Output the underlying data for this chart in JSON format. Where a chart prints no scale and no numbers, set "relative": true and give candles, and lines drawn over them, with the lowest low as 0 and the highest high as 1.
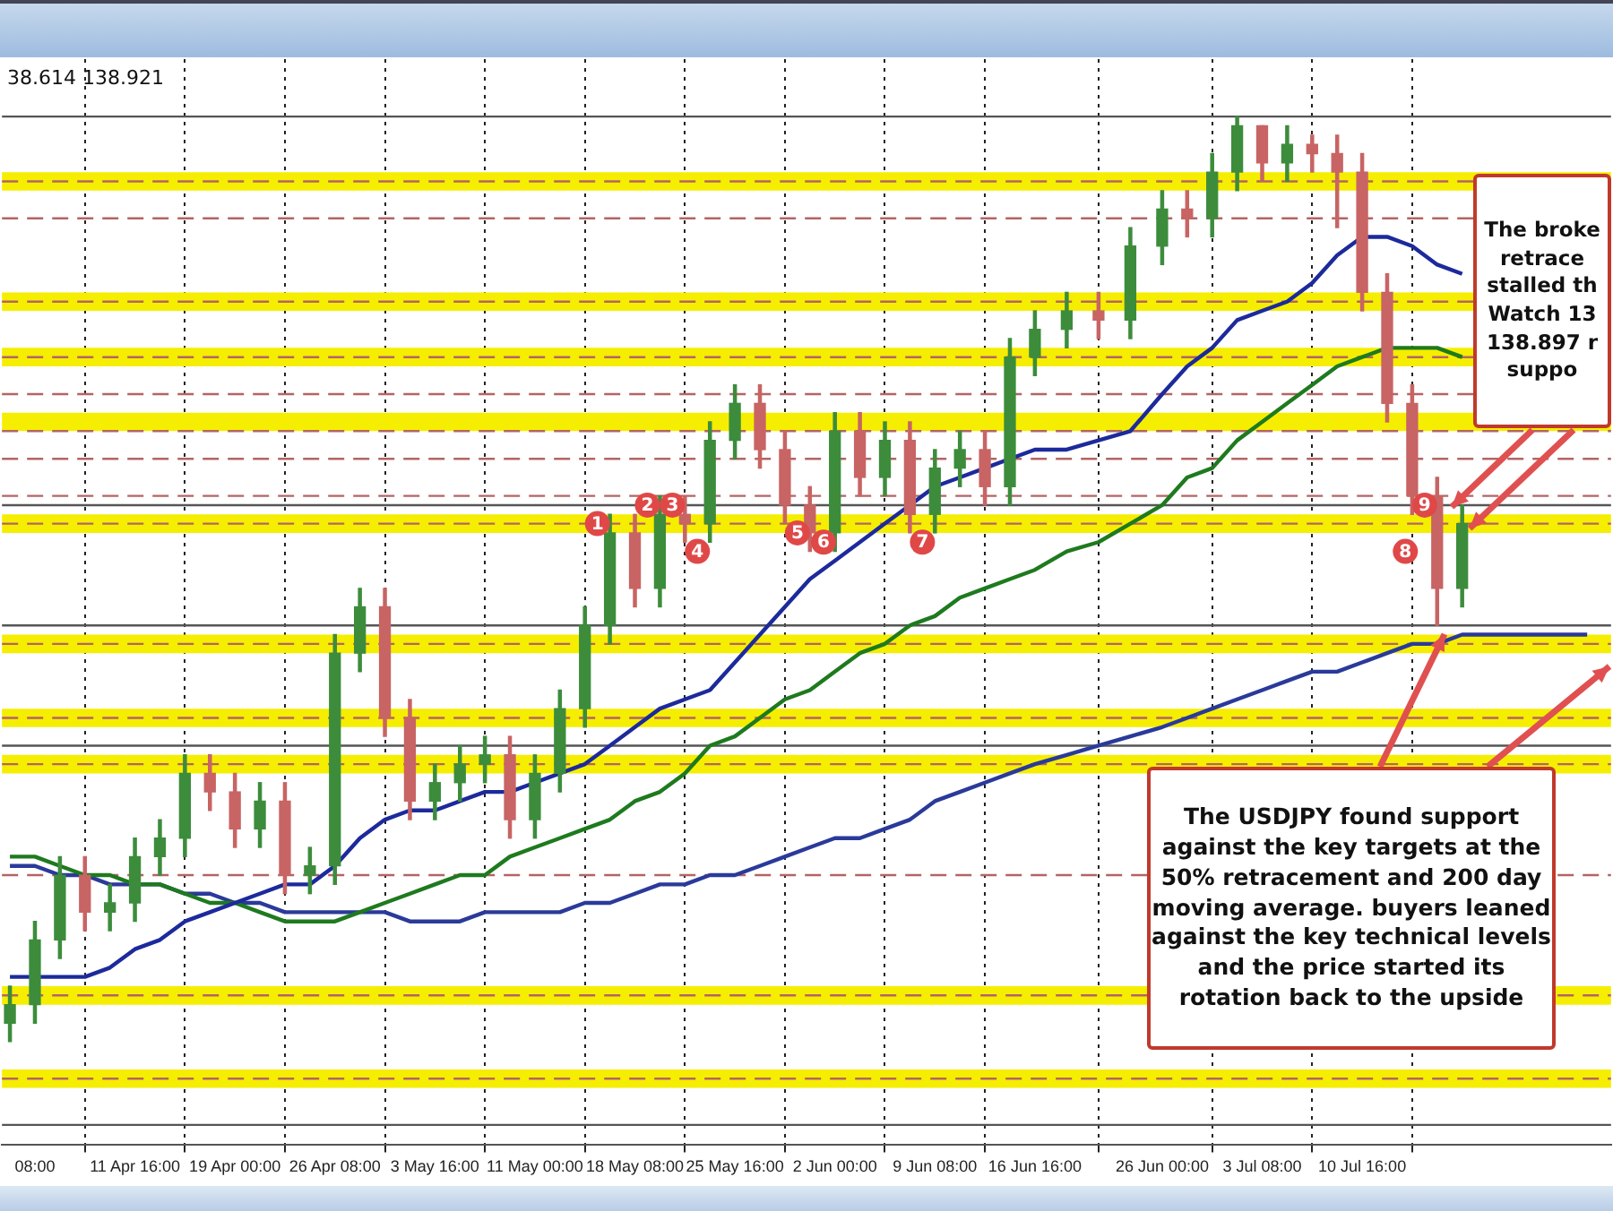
{
  "chart_data": {
    "type": "candlestick",
    "relative": true,
    "grid": "x",
    "tick_labels": "x",
    "x": [
      "--04-02T12:00",
      "--04-04T08:00",
      "--04-06T04:00",
      "--04-08T00:00",
      "--04-09T20:00",
      "--04-11T16:00",
      "--04-13T12:00",
      "--04-15T08:00",
      "--04-17T04:00",
      "--04-19T00:00",
      "--04-20T20:00",
      "--04-22T16:00",
      "--04-24T12:00",
      "--04-26T08:00",
      "--04-28T04:00",
      "--04-30T00:00",
      "--05-01T20:00",
      "--05-03T16:00",
      "--05-05T12:00",
      "--05-07T08:00",
      "--05-09T04:00",
      "--05-11T00:00",
      "--05-12T20:00",
      "--05-14T16:00",
      "--05-16T12:00",
      "--05-18T08:00",
      "--05-20T04:00",
      "--05-22T00:00",
      "--05-23T20:00",
      "--05-25T16:00",
      "--05-27T12:00",
      "--05-29T08:00",
      "--05-31T04:00",
      "--06-02T00:00",
      "--06-03T20:00",
      "--06-05T16:00",
      "--06-07T12:00",
      "--06-09T08:00",
      "--06-11T04:00",
      "--06-13T00:00",
      "--06-14T20:00",
      "--06-16T16:00",
      "--06-19T00:00",
      "--06-21T08:00",
      "--06-23T16:00",
      "--06-26T00:00",
      "--06-27T20:00",
      "--06-29T16:00",
      "--07-01T12:00",
      "--07-03T08:00",
      "--07-05T04:00",
      "--07-07T00:00",
      "--07-08T20:00",
      "--07-10T16:00",
      "--07-12T12:00",
      "--07-14T08:00",
      "--07-16T04:00",
      "--07-18T00:00"
    ],
    "ohlc": [
      [
        0.02,
        0.06,
        0.0,
        0.04
      ],
      [
        0.04,
        0.13,
        0.02,
        0.11
      ],
      [
        0.11,
        0.2,
        0.09,
        0.18
      ],
      [
        0.18,
        0.2,
        0.12,
        0.14
      ],
      [
        0.14,
        0.17,
        0.12,
        0.15
      ],
      [
        0.15,
        0.22,
        0.13,
        0.2
      ],
      [
        0.2,
        0.24,
        0.18,
        0.22
      ],
      [
        0.22,
        0.31,
        0.2,
        0.29
      ],
      [
        0.29,
        0.31,
        0.25,
        0.27
      ],
      [
        0.27,
        0.29,
        0.21,
        0.23
      ],
      [
        0.23,
        0.28,
        0.21,
        0.26
      ],
      [
        0.26,
        0.28,
        0.16,
        0.18
      ],
      [
        0.18,
        0.21,
        0.16,
        0.19
      ],
      [
        0.19,
        0.44,
        0.17,
        0.42
      ],
      [
        0.42,
        0.49,
        0.4,
        0.47
      ],
      [
        0.47,
        0.49,
        0.33,
        0.35
      ],
      [
        0.35,
        0.37,
        0.24,
        0.26
      ],
      [
        0.26,
        0.3,
        0.24,
        0.28
      ],
      [
        0.28,
        0.32,
        0.26,
        0.3
      ],
      [
        0.3,
        0.33,
        0.28,
        0.31
      ],
      [
        0.31,
        0.33,
        0.22,
        0.24
      ],
      [
        0.24,
        0.31,
        0.22,
        0.29
      ],
      [
        0.29,
        0.38,
        0.27,
        0.36
      ],
      [
        0.36,
        0.47,
        0.34,
        0.45
      ],
      [
        0.45,
        0.57,
        0.43,
        0.55
      ],
      [
        0.55,
        0.57,
        0.47,
        0.49
      ],
      [
        0.49,
        0.59,
        0.47,
        0.57
      ],
      [
        0.57,
        0.59,
        0.54,
        0.56
      ],
      [
        0.56,
        0.67,
        0.54,
        0.65
      ],
      [
        0.65,
        0.71,
        0.63,
        0.69
      ],
      [
        0.69,
        0.71,
        0.62,
        0.64
      ],
      [
        0.64,
        0.66,
        0.56,
        0.58
      ],
      [
        0.58,
        0.6,
        0.53,
        0.55
      ],
      [
        0.55,
        0.68,
        0.53,
        0.66
      ],
      [
        0.66,
        0.68,
        0.59,
        0.61
      ],
      [
        0.61,
        0.67,
        0.59,
        0.65
      ],
      [
        0.65,
        0.67,
        0.55,
        0.57
      ],
      [
        0.57,
        0.64,
        0.55,
        0.62
      ],
      [
        0.62,
        0.66,
        0.6,
        0.64
      ],
      [
        0.64,
        0.66,
        0.58,
        0.6
      ],
      [
        0.6,
        0.76,
        0.58,
        0.74
      ],
      [
        0.74,
        0.79,
        0.72,
        0.77
      ],
      [
        0.77,
        0.81,
        0.75,
        0.79
      ],
      [
        0.79,
        0.81,
        0.76,
        0.78
      ],
      [
        0.78,
        0.88,
        0.76,
        0.86
      ],
      [
        0.86,
        0.92,
        0.84,
        0.9
      ],
      [
        0.9,
        0.92,
        0.87,
        0.89
      ],
      [
        0.89,
        0.96,
        0.87,
        0.94
      ],
      [
        0.94,
        1.0,
        0.92,
        0.99
      ],
      [
        0.99,
        0.99,
        0.93,
        0.95
      ],
      [
        0.95,
        0.99,
        0.93,
        0.97
      ],
      [
        0.97,
        0.98,
        0.94,
        0.96
      ],
      [
        0.96,
        0.98,
        0.88,
        0.94
      ],
      [
        0.94,
        0.96,
        0.79,
        0.81
      ],
      [
        0.81,
        0.83,
        0.67,
        0.69
      ],
      [
        0.69,
        0.71,
        0.57,
        0.59
      ],
      [
        0.59,
        0.61,
        0.45,
        0.49
      ],
      [
        0.49,
        0.58,
        0.47,
        0.56
      ]
    ],
    "colors": [
      "#3c8c3c",
      "#3c8c3c",
      "#3c8c3c",
      "#c86464",
      "#3c8c3c",
      "#3c8c3c",
      "#3c8c3c",
      "#3c8c3c",
      "#c86464",
      "#c86464",
      "#3c8c3c",
      "#c86464",
      "#3c8c3c",
      "#3c8c3c",
      "#3c8c3c",
      "#c86464",
      "#c86464",
      "#3c8c3c",
      "#3c8c3c",
      "#3c8c3c",
      "#c86464",
      "#3c8c3c",
      "#3c8c3c",
      "#3c8c3c",
      "#3c8c3c",
      "#c86464",
      "#3c8c3c",
      "#c86464",
      "#3c8c3c",
      "#3c8c3c",
      "#c86464",
      "#c86464",
      "#c86464",
      "#3c8c3c",
      "#c86464",
      "#3c8c3c",
      "#c86464",
      "#3c8c3c",
      "#3c8c3c",
      "#c86464",
      "#3c8c3c",
      "#3c8c3c",
      "#3c8c3c",
      "#c86464",
      "#3c8c3c",
      "#3c8c3c",
      "#c86464",
      "#3c8c3c",
      "#3c8c3c",
      "#c86464",
      "#3c8c3c",
      "#c86464",
      "#c86464",
      "#c86464",
      "#c86464",
      "#c86464",
      "#c86464",
      "#3c8c3c"
    ],
    "xlim": [
      "--04-01T22:00",
      "--07-28T22:00"
    ],
    "xticks": [
      {
        "value": "--04-04T08:00",
        "label": "08:00"
      },
      {
        "value": "--04-11T16:00",
        "label": "11 Apr 16:00"
      },
      {
        "value": "--04-19T00:00",
        "label": "19 Apr 00:00"
      },
      {
        "value": "--04-26T08:00",
        "label": "26 Apr 08:00"
      },
      {
        "value": "--05-03T16:00",
        "label": "3 May 16:00"
      },
      {
        "value": "--05-11T00:00",
        "label": "11 May 00:00"
      },
      {
        "value": "--05-18T08:00",
        "label": "18 May 08:00"
      },
      {
        "value": "--05-25T16:00",
        "label": "25 May 16:00"
      },
      {
        "value": "--06-02T00:00",
        "label": "2 Jun 00:00"
      },
      {
        "value": "--06-09T08:00",
        "label": "9 Jun 08:00"
      },
      {
        "value": "--06-16T16:00",
        "label": "16 Jun 16:00"
      },
      {
        "value": "--06-26T00:00",
        "label": "26 Jun 00:00"
      },
      {
        "value": "--07-03T08:00",
        "label": "3 Jul 08:00"
      },
      {
        "value": "--07-10T16:00",
        "label": "10 Jul 16:00"
      }
    ],
    "series": [
      {
        "type": "line",
        "color": "#1c2a9c",
        "values": [
          0.07,
          0.07,
          0.07,
          0.07,
          0.08,
          0.1,
          0.11,
          0.13,
          0.14,
          0.15,
          0.16,
          0.17,
          0.17,
          0.19,
          0.22,
          0.24,
          0.25,
          0.25,
          0.26,
          0.27,
          0.27,
          0.28,
          0.29,
          0.3,
          0.32,
          0.34,
          0.36,
          0.37,
          0.38,
          0.41,
          0.44,
          0.47,
          0.5,
          0.52,
          0.54,
          0.56,
          0.58,
          0.6,
          0.61,
          0.62,
          0.63,
          0.64,
          0.64,
          0.65,
          0.66,
          0.7,
          0.73,
          0.75,
          0.78,
          0.79,
          0.8,
          0.82,
          0.85,
          0.87,
          0.87,
          0.86,
          0.84,
          0.83
        ]
      },
      {
        "type": "line",
        "color": "#1e7a1e",
        "values": [
          0.2,
          0.2,
          0.19,
          0.18,
          0.18,
          0.17,
          0.17,
          0.16,
          0.15,
          0.15,
          0.14,
          0.13,
          0.13,
          0.13,
          0.14,
          0.15,
          0.16,
          0.17,
          0.18,
          0.18,
          0.2,
          0.21,
          0.22,
          0.23,
          0.24,
          0.26,
          0.27,
          0.29,
          0.32,
          0.33,
          0.35,
          0.37,
          0.38,
          0.4,
          0.42,
          0.43,
          0.45,
          0.46,
          0.48,
          0.49,
          0.5,
          0.51,
          0.53,
          0.54,
          0.56,
          0.58,
          0.61,
          0.62,
          0.65,
          0.67,
          0.69,
          0.71,
          0.73,
          0.74,
          0.75,
          0.75,
          0.75,
          0.74
        ]
      },
      {
        "type": "line",
        "color": "#2a3a9a",
        "x": [
          "--04-02T12:00",
          "--04-04T08:00",
          "--04-06T04:00",
          "--04-08T00:00",
          "--04-09T20:00",
          "--04-11T16:00",
          "--04-13T12:00",
          "--04-15T08:00",
          "--04-17T04:00",
          "--04-19T00:00",
          "--04-20T20:00",
          "--04-22T16:00",
          "--04-24T12:00",
          "--04-26T08:00",
          "--04-28T04:00",
          "--04-30T00:00",
          "--05-01T20:00",
          "--05-03T16:00",
          "--05-05T12:00",
          "--05-07T08:00",
          "--05-09T04:00",
          "--05-11T00:00",
          "--05-12T20:00",
          "--05-14T16:00",
          "--05-16T12:00",
          "--05-18T08:00",
          "--05-20T04:00",
          "--05-22T00:00",
          "--05-23T20:00",
          "--05-25T16:00",
          "--05-27T12:00",
          "--05-29T08:00",
          "--05-31T04:00",
          "--06-02T00:00",
          "--06-03T20:00",
          "--06-05T16:00",
          "--06-07T12:00",
          "--06-09T08:00",
          "--06-11T04:00",
          "--06-13T00:00",
          "--06-14T20:00",
          "--06-16T16:00",
          "--06-19T00:00",
          "--06-21T08:00",
          "--06-23T16:00",
          "--06-26T00:00",
          "--06-27T20:00",
          "--06-29T16:00",
          "--07-01T12:00",
          "--07-03T08:00",
          "--07-05T04:00",
          "--07-07T00:00",
          "--07-08T20:00",
          "--07-10T16:00",
          "--07-12T12:00",
          "--07-14T08:00",
          "--07-16T04:00",
          "--07-18T00:00",
          "--07-19T20:00",
          "--07-21T16:00",
          "--07-23T12:00",
          "--07-25T08:00",
          "--07-27T04:00"
        ],
        "values": [
          0.19,
          0.19,
          0.18,
          0.18,
          0.17,
          0.17,
          0.17,
          0.16,
          0.16,
          0.15,
          0.15,
          0.14,
          0.14,
          0.14,
          0.14,
          0.14,
          0.13,
          0.13,
          0.13,
          0.14,
          0.14,
          0.14,
          0.14,
          0.15,
          0.15,
          0.16,
          0.17,
          0.17,
          0.18,
          0.18,
          0.19,
          0.2,
          0.21,
          0.22,
          0.22,
          0.23,
          0.24,
          0.26,
          0.27,
          0.28,
          0.29,
          0.3,
          0.31,
          0.32,
          0.33,
          0.34,
          0.35,
          0.36,
          0.37,
          0.38,
          0.39,
          0.4,
          0.4,
          0.41,
          0.42,
          0.43,
          0.43,
          0.44,
          0.44,
          0.44,
          0.44,
          0.44,
          0.44
        ]
      }
    ],
    "bands": [
      {
        "axis": "y",
        "from": 0.92,
        "to": 0.94,
        "color": "#f5ee00"
      },
      {
        "axis": "y",
        "from": 0.79,
        "to": 0.81,
        "color": "#f5ee00"
      },
      {
        "axis": "y",
        "from": 0.73,
        "to": 0.75,
        "color": "#f5ee00"
      },
      {
        "axis": "y",
        "from": 0.66,
        "to": 0.68,
        "color": "#f5ee00"
      },
      {
        "axis": "y",
        "from": 0.55,
        "to": 0.57,
        "color": "#f5ee00"
      },
      {
        "axis": "y",
        "from": 0.42,
        "to": 0.44,
        "color": "#f5ee00"
      },
      {
        "axis": "y",
        "from": 0.34,
        "to": 0.36,
        "color": "#f5ee00"
      },
      {
        "axis": "y",
        "from": 0.29,
        "to": 0.31,
        "color": "#f5ee00"
      },
      {
        "axis": "y",
        "from": 0.04,
        "to": 0.06,
        "color": "#f5ee00"
      },
      {
        "axis": "y",
        "from": -0.05,
        "to": -0.03,
        "color": "#f5ee00"
      }
    ],
    "ref_lines": [
      {
        "axis": "y",
        "value": 0.93,
        "color": "#b46464",
        "line_style": "dashed"
      },
      {
        "axis": "y",
        "value": 0.89,
        "color": "#b46464",
        "line_style": "dashed"
      },
      {
        "axis": "y",
        "value": 0.8,
        "color": "#b46464",
        "line_style": "dashed"
      },
      {
        "axis": "y",
        "value": 0.74,
        "color": "#b46464",
        "line_style": "dashed"
      },
      {
        "axis": "y",
        "value": 0.7,
        "color": "#b46464",
        "line_style": "dashed"
      },
      {
        "axis": "y",
        "value": 0.66,
        "color": "#b46464",
        "line_style": "dashed"
      },
      {
        "axis": "y",
        "value": 0.63,
        "color": "#b46464",
        "line_style": "dashed"
      },
      {
        "axis": "y",
        "value": 0.59,
        "color": "#b46464",
        "line_style": "dashed"
      },
      {
        "axis": "y",
        "value": 0.56,
        "color": "#b46464",
        "line_style": "dashed"
      },
      {
        "axis": "y",
        "value": 0.43,
        "color": "#b46464",
        "line_style": "dashed"
      },
      {
        "axis": "y",
        "value": 0.35,
        "color": "#b46464",
        "line_style": "dashed"
      },
      {
        "axis": "y",
        "value": 0.3,
        "color": "#b46464",
        "line_style": "dashed"
      },
      {
        "axis": "y",
        "value": 0.18,
        "color": "#b46464",
        "line_style": "dashed"
      },
      {
        "axis": "y",
        "value": 0.05,
        "color": "#b46464",
        "line_style": "dashed"
      },
      {
        "axis": "y",
        "value": -0.04,
        "color": "#b46464",
        "line_style": "dashed"
      },
      {
        "axis": "y",
        "value": 1.0,
        "color": "#555555",
        "line_style": "solid"
      },
      {
        "axis": "y",
        "value": 0.58,
        "color": "#555555",
        "line_style": "solid"
      },
      {
        "axis": "y",
        "value": 0.45,
        "color": "#555555",
        "line_style": "solid"
      },
      {
        "axis": "y",
        "value": 0.32,
        "color": "#555555",
        "line_style": "solid"
      },
      {
        "axis": "y",
        "value": -0.09,
        "color": "#555555",
        "line_style": "solid"
      }
    ],
    "annotations": [
      "38.614 138.921",
      "The broke\nretrace\nstalled th\nWatch 13\n138.897 r\nsuppo",
      "The USDJPY found support\nagainst the key targets at the\n50% retracement and 200 day\nmoving average.  buyers leaned\nagainst the key technical levels\nand the price started its\nrotation back to the upside",
      {
        "text": "1",
        "x": "--05-15T14:00",
        "y": 0.56
      },
      {
        "text": "2",
        "x": "--05-19T06:00",
        "y": 0.58
      },
      {
        "text": "3",
        "x": "--05-21T02:00",
        "y": 0.58
      },
      {
        "text": "4",
        "x": "--05-22T22:00",
        "y": 0.53
      },
      {
        "text": "5",
        "x": "--05-30T06:00",
        "y": 0.55
      },
      {
        "text": "6",
        "x": "--06-01T04:00",
        "y": 0.54
      },
      {
        "text": "7",
        "x": "--06-08T10:00",
        "y": 0.54
      },
      {
        "text": "8",
        "x": "--07-13T20:00",
        "y": 0.53
      },
      {
        "text": "9",
        "x": "--07-15T06:00",
        "y": 0.58
      }
    ]
  }
}
